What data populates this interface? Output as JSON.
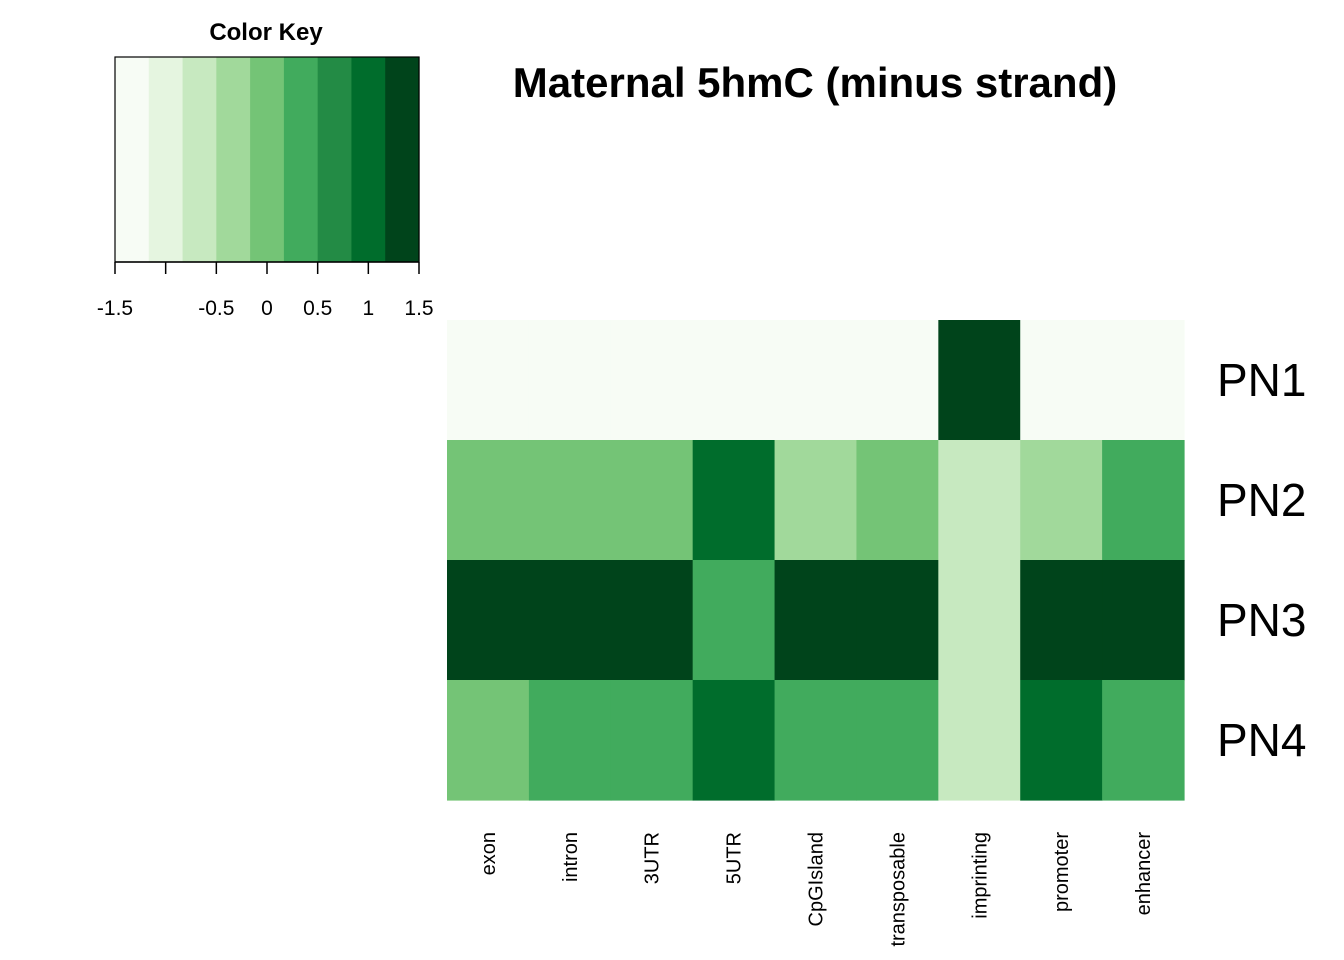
{
  "chart_data": {
    "type": "heatmap",
    "title": "Maternal 5hmC  (minus strand)",
    "rows": [
      "PN1",
      "PN2",
      "PN3",
      "PN4"
    ],
    "columns": [
      "exon",
      "intron",
      "3UTR",
      "5UTR",
      "CpGIsland",
      "transposable",
      "imprinting",
      "promoter",
      "enhancer"
    ],
    "values": [
      [
        -1.5,
        -1.5,
        -1.5,
        -1.5,
        -1.5,
        -1.5,
        1.5,
        -1.5,
        -1.5
      ],
      [
        0.0,
        0.0,
        0.0,
        0.85,
        -0.35,
        0.0,
        -0.65,
        -0.35,
        0.5
      ],
      [
        1.2,
        1.2,
        1.2,
        0.5,
        1.2,
        1.2,
        -0.65,
        1.2,
        1.2
      ],
      [
        0.0,
        0.5,
        0.5,
        0.85,
        0.5,
        0.5,
        -0.65,
        0.85,
        0.5
      ]
    ],
    "color_key": {
      "title": "Color Key",
      "range": [
        -1.5,
        1.5
      ],
      "breaks": [
        -1.5,
        -1.1667,
        -0.8333,
        -0.5,
        -0.1667,
        0.1667,
        0.5,
        0.8333,
        1.1667,
        1.5
      ],
      "colors": [
        "#F7FCF5",
        "#E5F5E0",
        "#C7E9C0",
        "#A1D99B",
        "#74C476",
        "#41AB5D",
        "#238B45",
        "#006D2C",
        "#00441B"
      ],
      "tick_values": [
        -1.5,
        -1.0,
        -0.5,
        0.0,
        0.5,
        1.0,
        1.5
      ],
      "tick_labels": [
        "-1.5",
        "",
        "-0.5",
        "0",
        "0.5",
        "1",
        "1.5"
      ]
    }
  }
}
